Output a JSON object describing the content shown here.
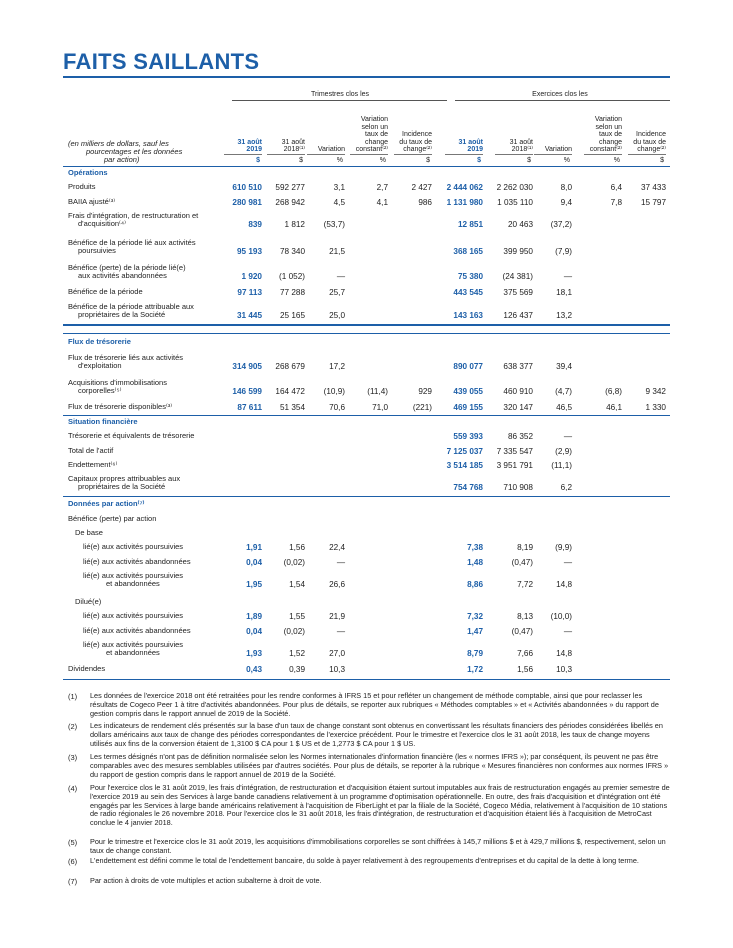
{
  "title": "FAITS SAILLANTS",
  "header": {
    "group_quarter": "Trimestres clos les",
    "group_year": "Exercices clos les",
    "unit_note": [
      "(en milliers de dollars, sauf les",
      "pourcentages et les données",
      "par action)"
    ],
    "col_2019": [
      "31 août",
      "2019"
    ],
    "col_2018": [
      "31 août",
      "2018⁽¹⁾"
    ],
    "col_variation": "Variation",
    "col_var_const": [
      "Variation",
      "selon un",
      "taux de",
      "change",
      "constant⁽²⁾"
    ],
    "col_incidence": [
      "Incidence",
      "du taux de",
      "change⁽²⁾"
    ],
    "unit_dollar": "$",
    "unit_pct": "%"
  },
  "sections": {
    "operations": "Opérations",
    "tresorerie": "Flux de trésorerie",
    "situation": "Situation financière",
    "donnees": "Données par action⁽⁷⁾"
  },
  "rows": [
    {
      "id": "produits",
      "label": [
        "Produits"
      ],
      "q": [
        "610 510",
        "592 277",
        "3,1",
        "2,7",
        "2 427"
      ],
      "y": [
        "2 444 062",
        "2 262 030",
        "8,0",
        "6,4",
        "37 433"
      ]
    },
    {
      "id": "baiia",
      "label": [
        "BAIIA ajusté⁽³⁾"
      ],
      "q": [
        "280 981",
        "268 942",
        "4,5",
        "4,1",
        "986"
      ],
      "y": [
        "1 131 980",
        "1 035 110",
        "9,4",
        "7,8",
        "15 797"
      ]
    },
    {
      "id": "frais",
      "label": [
        "Frais d'intégration, de restructuration et",
        "d'acquisition⁽⁴⁾"
      ],
      "q": [
        "839",
        "1 812",
        "(53,7)",
        "",
        ""
      ],
      "y": [
        "12 851",
        "20 463",
        "(37,2)",
        "",
        ""
      ]
    },
    {
      "id": "benef_pours",
      "label": [
        "Bénéfice de la période lié aux activités",
        "poursuivies"
      ],
      "q": [
        "95 193",
        "78 340",
        "21,5",
        "",
        ""
      ],
      "y": [
        "368 165",
        "399 950",
        "(7,9)",
        "",
        ""
      ]
    },
    {
      "id": "benef_aband",
      "label": [
        "Bénéfice (perte) de la période lié(e)",
        "aux activités abandonnées"
      ],
      "q": [
        "1 920",
        "(1 052)",
        "—",
        "",
        ""
      ],
      "y": [
        "75 380",
        "(24 381)",
        "—",
        "",
        ""
      ]
    },
    {
      "id": "benef_periode",
      "label": [
        "Bénéfice de la période"
      ],
      "q": [
        "97 113",
        "77 288",
        "25,7",
        "",
        ""
      ],
      "y": [
        "443 545",
        "375 569",
        "18,1",
        "",
        ""
      ]
    },
    {
      "id": "benef_attrib",
      "label": [
        "Bénéfice de la période attribuable aux",
        "propriétaires de la Société"
      ],
      "q": [
        "31 445",
        "25 165",
        "25,0",
        "",
        ""
      ],
      "y": [
        "143 163",
        "126 437",
        "13,2",
        "",
        ""
      ]
    },
    {
      "id": "flux_expl",
      "label": [
        "Flux de trésorerie liés aux activités",
        "d'exploitation"
      ],
      "q": [
        "314 905",
        "268 679",
        "17,2",
        "",
        ""
      ],
      "y": [
        "890 077",
        "638 377",
        "39,4",
        "",
        ""
      ]
    },
    {
      "id": "acq_immo",
      "label": [
        "Acquisitions d'immobilisations",
        "corporelles⁽⁵⁾"
      ],
      "q": [
        "146 599",
        "164 472",
        "(10,9)",
        "(11,4)",
        "929"
      ],
      "y": [
        "439 055",
        "460 910",
        "(4,7)",
        "(6,8)",
        "9 342"
      ]
    },
    {
      "id": "flux_dispo",
      "label": [
        "Flux de trésorerie disponibles⁽³⁾"
      ],
      "q": [
        "87 611",
        "51 354",
        "70,6",
        "71,0",
        "(221)"
      ],
      "y": [
        "469 155",
        "320 147",
        "46,5",
        "46,1",
        "1 330"
      ]
    },
    {
      "id": "treso",
      "label": [
        "Trésorerie et équivalents de trésorerie"
      ],
      "q": [
        "",
        "",
        "",
        "",
        ""
      ],
      "y": [
        "559 393",
        "86 352",
        "—",
        "",
        ""
      ]
    },
    {
      "id": "actif",
      "label": [
        "Total de l'actif"
      ],
      "q": [
        "",
        "",
        "",
        "",
        ""
      ],
      "y": [
        "7 125 037",
        "7 335 547",
        "(2,9)",
        "",
        ""
      ]
    },
    {
      "id": "endet",
      "label": [
        "Endettement⁽⁶⁾"
      ],
      "q": [
        "",
        "",
        "",
        "",
        ""
      ],
      "y": [
        "3 514 185",
        "3 951 791",
        "(11,1)",
        "",
        ""
      ]
    },
    {
      "id": "capitaux",
      "label": [
        "Capitaux propres attribuables aux",
        "propriétaires de la Société"
      ],
      "q": [
        "",
        "",
        "",
        "",
        ""
      ],
      "y": [
        "754 768",
        "710 908",
        "6,2",
        "",
        ""
      ]
    },
    {
      "id": "benef_action",
      "label": [
        "Bénéfice (perte) par action"
      ],
      "q": [
        "",
        "",
        "",
        "",
        ""
      ],
      "y": [
        "",
        "",
        "",
        "",
        ""
      ]
    },
    {
      "id": "de_base",
      "label": [
        "De base"
      ],
      "q": [
        "",
        "",
        "",
        "",
        ""
      ],
      "y": [
        "",
        "",
        "",
        "",
        ""
      ]
    },
    {
      "id": "b_pours",
      "label": [
        "lié(e) aux activités poursuivies"
      ],
      "q": [
        "1,91",
        "1,56",
        "22,4",
        "",
        ""
      ],
      "y": [
        "7,38",
        "8,19",
        "(9,9)",
        "",
        ""
      ]
    },
    {
      "id": "b_aband",
      "label": [
        "lié(e) aux activités abandonnées"
      ],
      "q": [
        "0,04",
        "(0,02)",
        "—",
        "",
        ""
      ],
      "y": [
        "1,48",
        "(0,47)",
        "—",
        "",
        ""
      ]
    },
    {
      "id": "b_tot",
      "label": [
        "lié(e) aux activités poursuivies",
        "et abandonnées"
      ],
      "q": [
        "1,95",
        "1,54",
        "26,6",
        "",
        ""
      ],
      "y": [
        "8,86",
        "7,72",
        "14,8",
        "",
        ""
      ]
    },
    {
      "id": "dilue",
      "label": [
        "Dilué(e)"
      ],
      "q": [
        "",
        "",
        "",
        "",
        ""
      ],
      "y": [
        "",
        "",
        "",
        "",
        ""
      ]
    },
    {
      "id": "d_pours",
      "label": [
        "lié(e) aux activités poursuivies"
      ],
      "q": [
        "1,89",
        "1,55",
        "21,9",
        "",
        ""
      ],
      "y": [
        "7,32",
        "8,13",
        "(10,0)",
        "",
        ""
      ]
    },
    {
      "id": "d_aband",
      "label": [
        "lié(e) aux activités abandonnées"
      ],
      "q": [
        "0,04",
        "(0,02)",
        "—",
        "",
        ""
      ],
      "y": [
        "1,47",
        "(0,47)",
        "—",
        "",
        ""
      ]
    },
    {
      "id": "d_tot",
      "label": [
        "lié(e) aux activités poursuivies",
        "et abandonnées"
      ],
      "q": [
        "1,93",
        "1,52",
        "27,0",
        "",
        ""
      ],
      "y": [
        "8,79",
        "7,66",
        "14,8",
        "",
        ""
      ]
    },
    {
      "id": "dividendes",
      "label": [
        "Dividendes"
      ],
      "q": [
        "0,43",
        "0,39",
        "10,3",
        "",
        ""
      ],
      "y": [
        "1,72",
        "1,56",
        "10,3",
        "",
        ""
      ]
    }
  ],
  "footnotes": [
    {
      "n": "(1)",
      "text": "Les données de l'exercice 2018 ont été retraitées pour les rendre conformes à IFRS 15 et pour refléter un changement de méthode comptable, ainsi que pour reclasser les résultats de Cogeco Peer 1 à titre d'activités abandonnées. Pour plus de détails, se reporter aux rubriques « Méthodes comptables » et « Activités abandonnées » du rapport de gestion compris dans le rapport annuel de 2019 de la Société."
    },
    {
      "n": "(2)",
      "text": "Les indicateurs de rendement clés présentés sur la base d'un taux de change constant sont obtenus en convertissant les résultats financiers des périodes considérées libellés en dollars américains aux taux de change des périodes correspondantes de l'exercice précédent. Pour le trimestre et l'exercice clos le 31 août 2018, les taux de change moyens utilisés aux fins de la conversion étaient de 1,3100 $ CA pour 1 $ US et de 1,2773 $ CA pour 1 $ US."
    },
    {
      "n": "(3)",
      "text": "Les termes désignés n'ont pas de définition normalisée selon les Normes internationales d'information financière (les « normes IFRS »); par conséquent, ils peuvent ne pas être comparables avec des mesures semblables utilisées par d'autres sociétés. Pour plus de détails, se reporter à la rubrique « Mesures financières non conformes aux normes IFRS » du rapport de gestion compris dans le rapport annuel de 2019 de la Société."
    },
    {
      "n": "(4)",
      "text": "Pour l'exercice clos le 31 août 2019, les frais d'intégration, de restructuration et d'acquisition étaient surtout imputables aux frais de restructuration engagés au premier semestre de l'exercice 2019 au sein des Services à large bande canadiens relativement à un programme d'optimisation opérationnelle. En outre, des frais d'acquisition et d'intégration ont été engagés par les Services à large bande américains relativement à l'acquisition de FiberLight et par la filiale de la Société, Cogeco Média, relativement à l'acquisition de 10 stations de radio régionales le 26 novembre 2018. Pour l'exercice clos le 31 août 2018, les frais d'intégration, de restructuration et d'acquisition étaient liés à l'acquisition de MetroCast conclue le 4 janvier 2018."
    },
    {
      "n": "(5)",
      "text": "Pour le trimestre et l'exercice clos le 31 août 2019, les acquisitions d'immobilisations corporelles se sont chiffrées à 145,7 millions $ et à 429,7 millions $, respectivement, selon un taux de change constant."
    },
    {
      "n": "(6)",
      "text": "L'endettement est défini comme le total de l'endettement bancaire, du solde à payer relativement à des regroupements d'entreprises et du capital de la dette à long terme."
    },
    {
      "n": "(7)",
      "text": "Par action à droits de vote multiples et action subalterne à droit de vote."
    }
  ]
}
